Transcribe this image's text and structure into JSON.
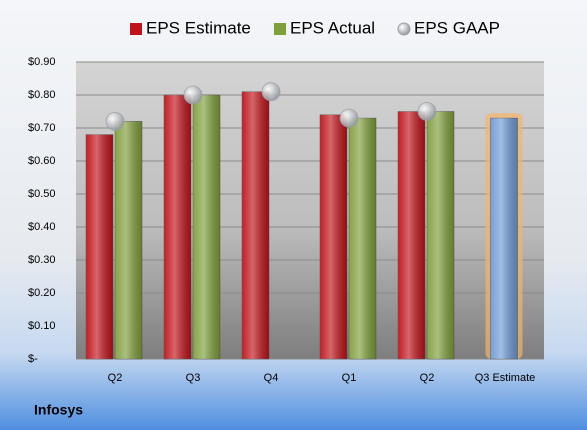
{
  "chart_data": {
    "type": "bar",
    "categories": [
      "Q2",
      "Q3",
      "Q4",
      "Q1",
      "Q2",
      "Q3 Estimate"
    ],
    "series": [
      {
        "name": "EPS Estimate",
        "color": "#c0131a",
        "values": [
          0.68,
          0.8,
          0.81,
          0.74,
          0.75,
          null
        ]
      },
      {
        "name": "EPS Actual",
        "color": "#7f9f3a",
        "values": [
          0.72,
          0.8,
          null,
          0.73,
          0.75,
          0.73
        ],
        "highlight": {
          "index": 5,
          "color": "#6f9bd6",
          "glow": "#f7b36a"
        }
      },
      {
        "name": "EPS GAAP",
        "color": "#b8bec6",
        "marker": "circle",
        "values": [
          0.72,
          0.8,
          0.81,
          0.73,
          0.75,
          null
        ]
      }
    ],
    "ylim": [
      0,
      0.9
    ],
    "yticks": [
      {
        "value": 0,
        "label": "$-"
      },
      {
        "value": 0.1,
        "label": "$0.10"
      },
      {
        "value": 0.2,
        "label": "$0.20"
      },
      {
        "value": 0.3,
        "label": "$0.30"
      },
      {
        "value": 0.4,
        "label": "$0.40"
      },
      {
        "value": 0.5,
        "label": "$0.50"
      },
      {
        "value": 0.6,
        "label": "$0.60"
      },
      {
        "value": 0.7,
        "label": "$0.70"
      },
      {
        "value": 0.8,
        "label": "$0.80"
      },
      {
        "value": 0.9,
        "label": "$0.90"
      }
    ],
    "grid": true,
    "legend": "top",
    "footer": "Infosys"
  }
}
